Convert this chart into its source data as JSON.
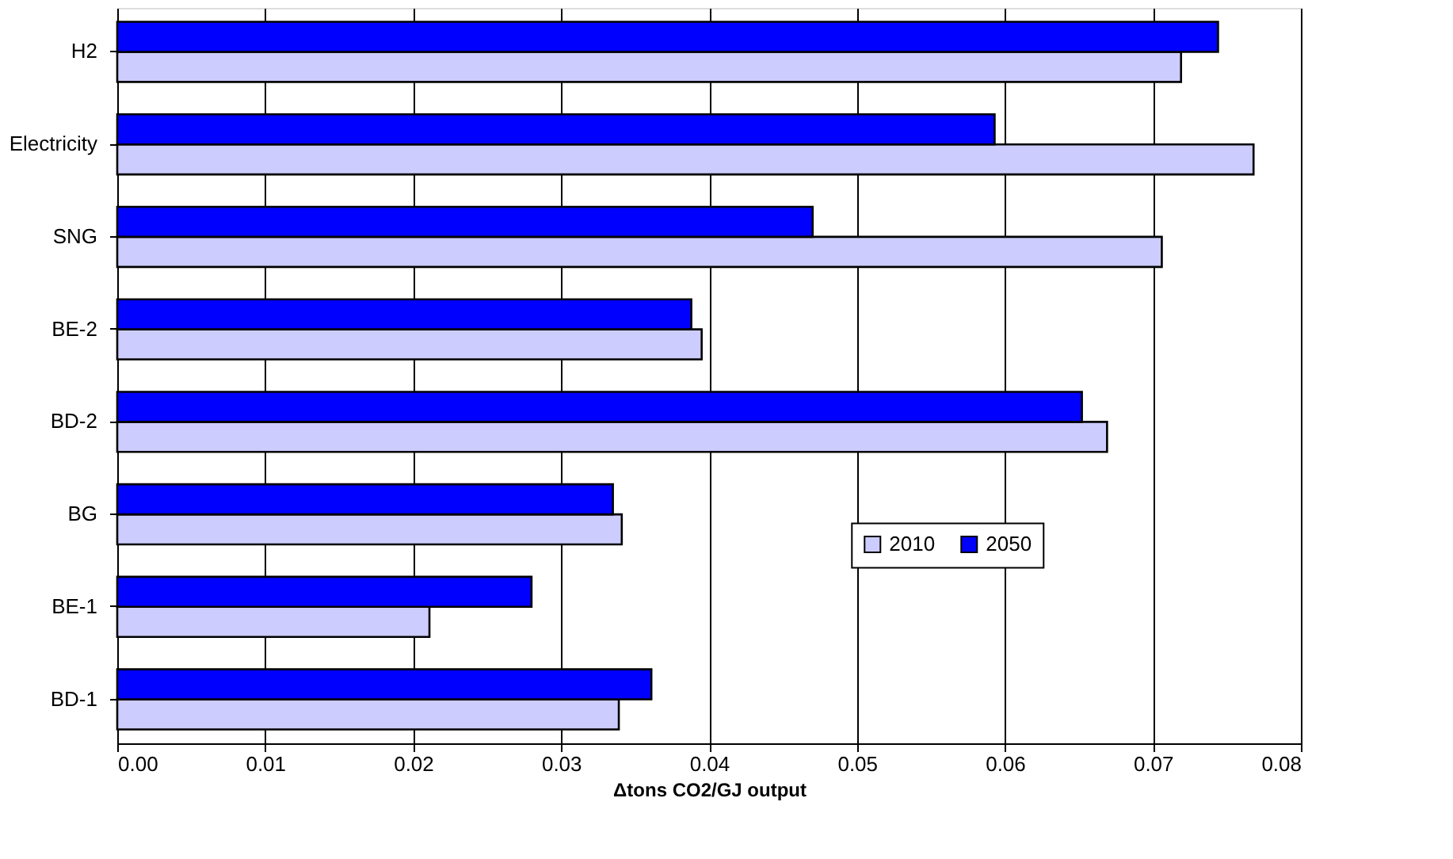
{
  "chart_data": {
    "type": "bar",
    "orientation": "horizontal",
    "xlabel": "Δtons CO2/GJ output",
    "categories": [
      "H2",
      "Electricity",
      "SNG",
      "BE-2",
      "BD-2",
      "BG",
      "BE-1",
      "BD-1"
    ],
    "series": [
      {
        "name": "2010",
        "color": "#ccccff",
        "values": [
          0.0719,
          0.0768,
          0.0706,
          0.0395,
          0.0669,
          0.0341,
          0.0211,
          0.0339
        ]
      },
      {
        "name": "2050",
        "color": "#0000ff",
        "values": [
          0.0744,
          0.0593,
          0.047,
          0.0388,
          0.0652,
          0.0335,
          0.028,
          0.0361
        ]
      }
    ],
    "xlim": [
      0,
      0.08
    ],
    "xticks": [
      {
        "value": 0,
        "label": "0.00"
      },
      {
        "value": 0.01,
        "label": "0.01"
      },
      {
        "value": 0.02,
        "label": "0.02"
      },
      {
        "value": 0.03,
        "label": "0.03"
      },
      {
        "value": 0.04,
        "label": "0.04"
      },
      {
        "value": 0.05,
        "label": "0.05"
      },
      {
        "value": 0.06,
        "label": "0.06"
      },
      {
        "value": 0.07,
        "label": "0.07"
      },
      {
        "value": 0.08,
        "label": "0.08"
      }
    ],
    "grid": "x",
    "legend": "right"
  }
}
